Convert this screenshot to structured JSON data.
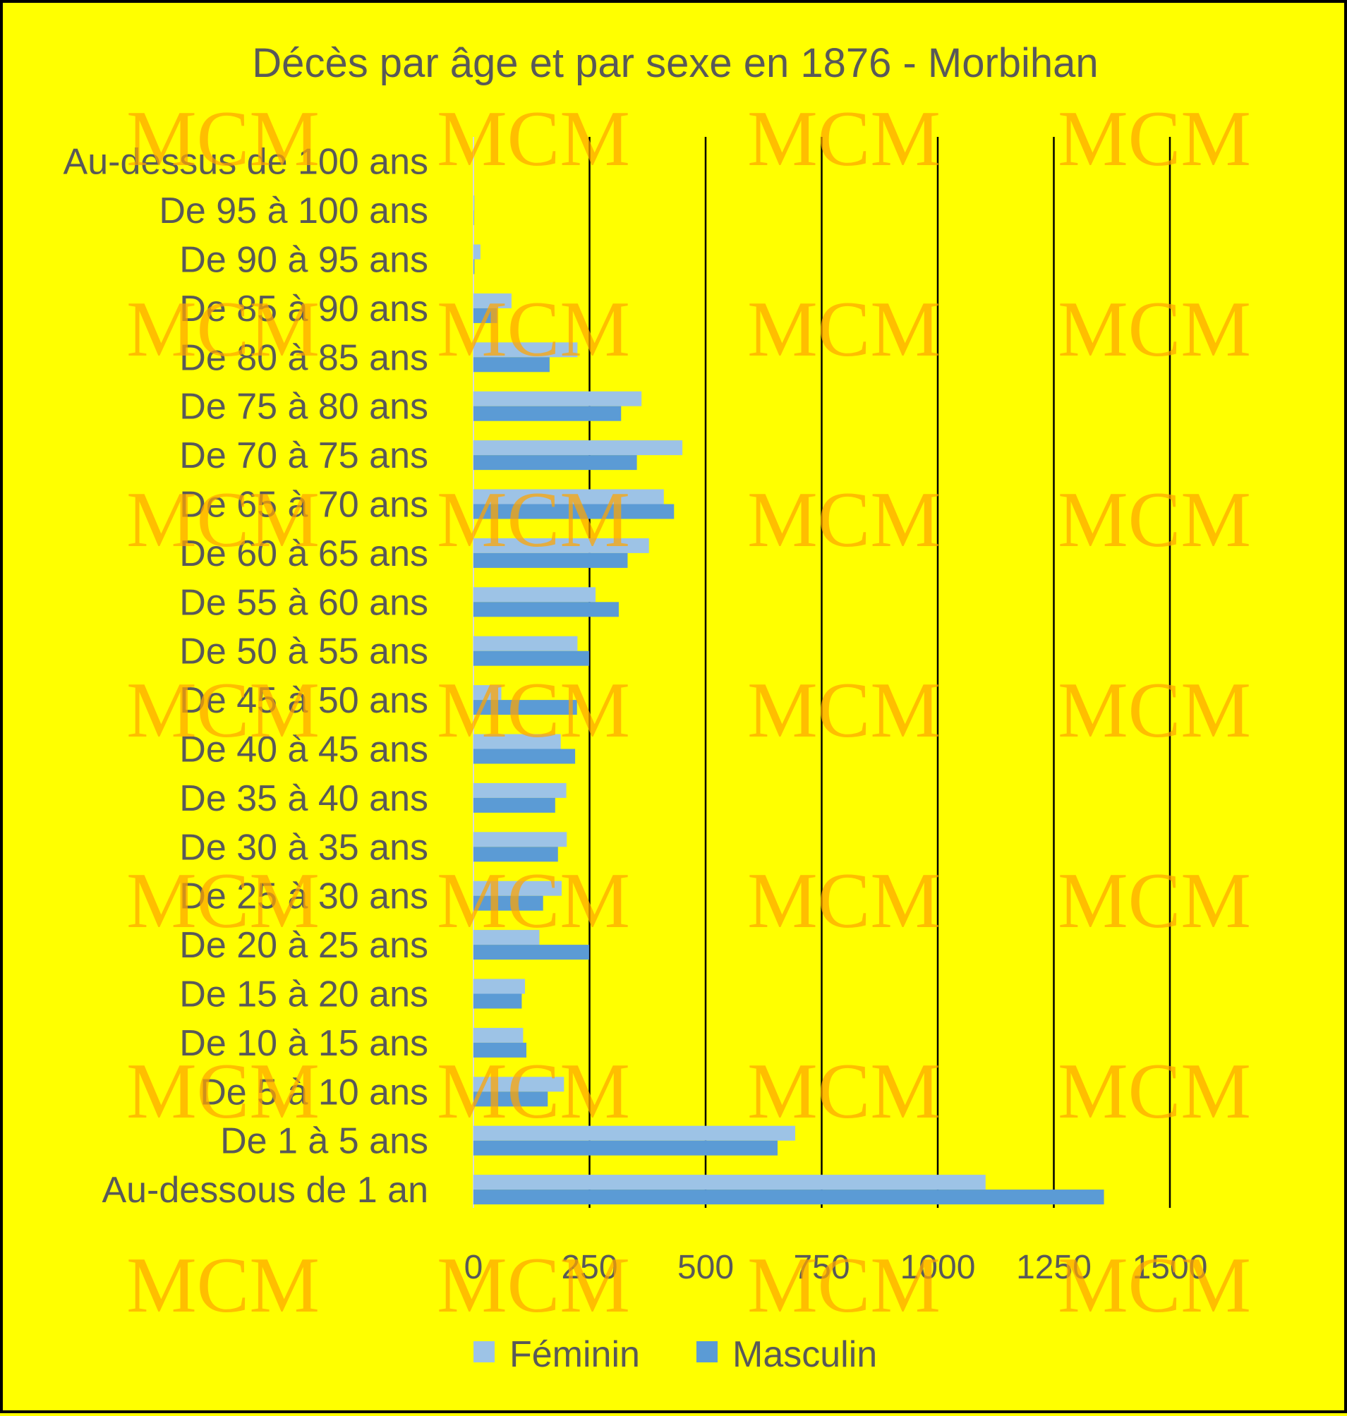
{
  "watermark": "MCM",
  "colors": {
    "background": "#ffff00",
    "feminin": "#9dc3e6",
    "masculin": "#5b9bd5",
    "gridline": "#000000",
    "text": "#595959",
    "watermark": "#ffa500"
  },
  "chart_data": {
    "type": "bar",
    "orientation": "horizontal",
    "title": "Décès par âge et par sexe en 1876 -  Morbihan",
    "categories": [
      "Au-dessus de 100 ans",
      "De 95 à 100 ans",
      "De 90 à 95 ans",
      "De 85 à 90 ans",
      "De 80 à 85 ans",
      "De 75 à 80 ans",
      "De 70 à 75 ans",
      "De 65 à 70 ans",
      "De 60 à 65 ans",
      "De 55 à 60 ans",
      "De 50 à 55 ans",
      "De 45 à 50 ans",
      "De 40 à 45 ans",
      "De 35 à 40 ans",
      "De 30 à 35 ans",
      "De 25 à 30 ans",
      "De 20 à 25 ans",
      "De 15 à 20 ans",
      "De 10 à 15 ans",
      "De 5 à 10 ans",
      "De 1 à 5 ans",
      "Au-dessous de 1 an"
    ],
    "series": [
      {
        "name": "Féminin",
        "values": [
          0,
          2,
          15,
          82,
          224,
          362,
          450,
          410,
          378,
          263,
          224,
          60,
          188,
          200,
          201,
          190,
          142,
          111,
          107,
          195,
          693,
          1103
        ]
      },
      {
        "name": "Masculin",
        "values": [
          0,
          1,
          2,
          51,
          164,
          318,
          352,
          432,
          332,
          313,
          249,
          223,
          219,
          176,
          182,
          150,
          249,
          104,
          114,
          160,
          655,
          1358
        ]
      }
    ],
    "xlim": [
      0,
      1500
    ],
    "xticks": [
      "0",
      "250",
      "500",
      "750",
      "1000",
      "1250",
      "1500"
    ],
    "grid": true,
    "legend": "bottom"
  }
}
